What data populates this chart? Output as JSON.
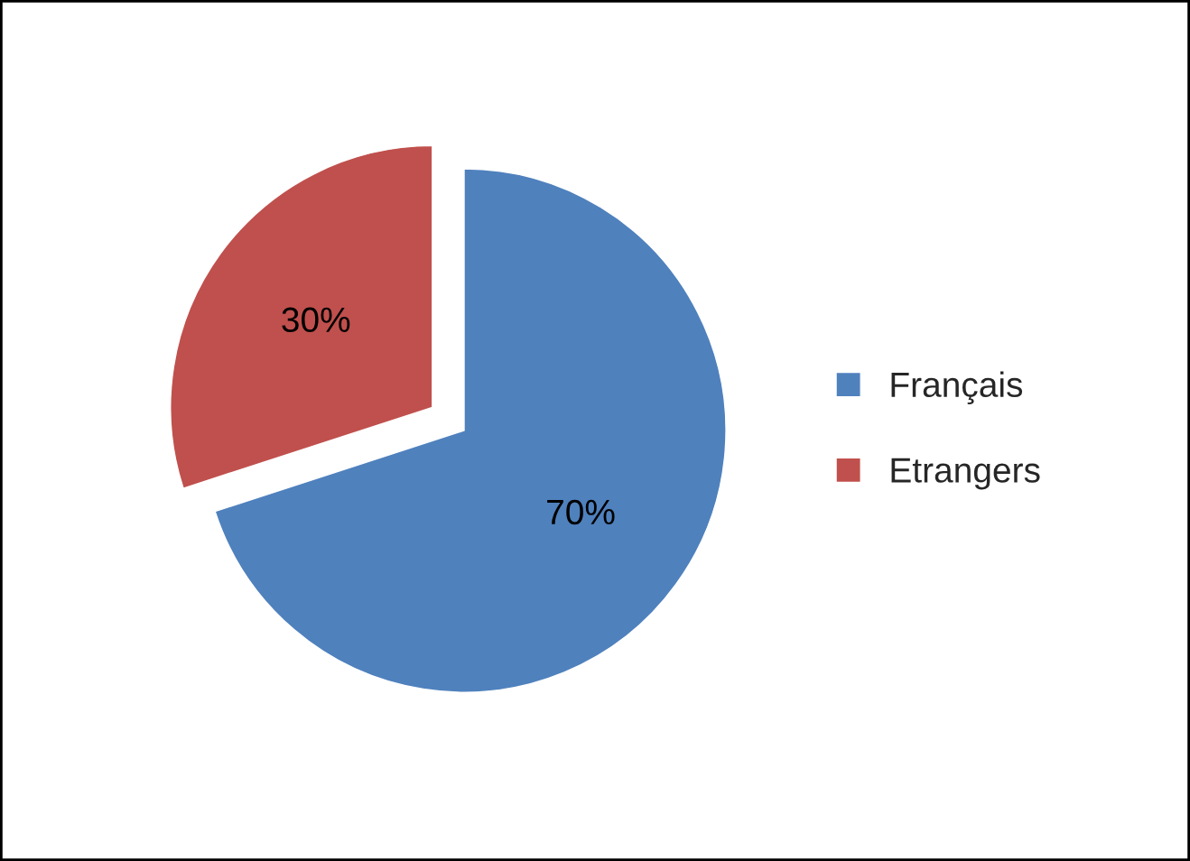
{
  "chart_data": {
    "type": "pie",
    "categories": [
      "Français",
      "Etrangers"
    ],
    "values": [
      70,
      30
    ],
    "colors": [
      "#4f81bd",
      "#c0504d"
    ],
    "value_labels": [
      "70%",
      "30%"
    ],
    "legend": "right"
  }
}
